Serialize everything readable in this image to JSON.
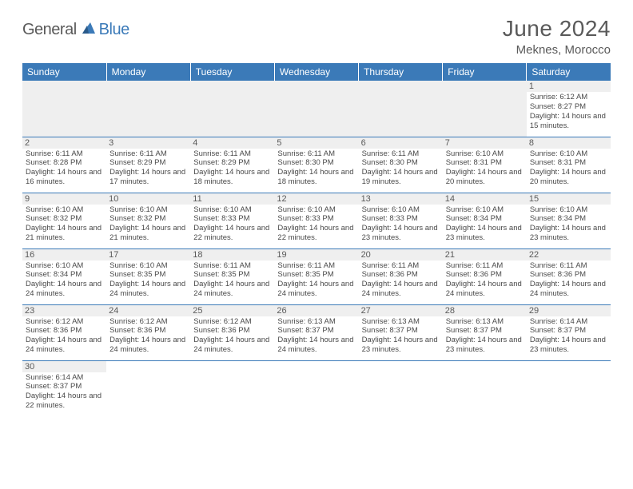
{
  "brand": {
    "part1": "General",
    "part2": "Blue"
  },
  "title": "June 2024",
  "location": "Meknes, Morocco",
  "headerColors": {
    "bg": "#3b7ab8",
    "text": "#ffffff"
  },
  "dayHeaderBg": "#efefef",
  "cellBorder": "#3b7ab8",
  "weekdays": [
    "Sunday",
    "Monday",
    "Tuesday",
    "Wednesday",
    "Thursday",
    "Friday",
    "Saturday"
  ],
  "weeks": [
    [
      null,
      null,
      null,
      null,
      null,
      null,
      {
        "n": "1",
        "sr": "6:12 AM",
        "ss": "8:27 PM",
        "dl": "14 hours and 15 minutes."
      }
    ],
    [
      {
        "n": "2",
        "sr": "6:11 AM",
        "ss": "8:28 PM",
        "dl": "14 hours and 16 minutes."
      },
      {
        "n": "3",
        "sr": "6:11 AM",
        "ss": "8:29 PM",
        "dl": "14 hours and 17 minutes."
      },
      {
        "n": "4",
        "sr": "6:11 AM",
        "ss": "8:29 PM",
        "dl": "14 hours and 18 minutes."
      },
      {
        "n": "5",
        "sr": "6:11 AM",
        "ss": "8:30 PM",
        "dl": "14 hours and 18 minutes."
      },
      {
        "n": "6",
        "sr": "6:11 AM",
        "ss": "8:30 PM",
        "dl": "14 hours and 19 minutes."
      },
      {
        "n": "7",
        "sr": "6:10 AM",
        "ss": "8:31 PM",
        "dl": "14 hours and 20 minutes."
      },
      {
        "n": "8",
        "sr": "6:10 AM",
        "ss": "8:31 PM",
        "dl": "14 hours and 20 minutes."
      }
    ],
    [
      {
        "n": "9",
        "sr": "6:10 AM",
        "ss": "8:32 PM",
        "dl": "14 hours and 21 minutes."
      },
      {
        "n": "10",
        "sr": "6:10 AM",
        "ss": "8:32 PM",
        "dl": "14 hours and 21 minutes."
      },
      {
        "n": "11",
        "sr": "6:10 AM",
        "ss": "8:33 PM",
        "dl": "14 hours and 22 minutes."
      },
      {
        "n": "12",
        "sr": "6:10 AM",
        "ss": "8:33 PM",
        "dl": "14 hours and 22 minutes."
      },
      {
        "n": "13",
        "sr": "6:10 AM",
        "ss": "8:33 PM",
        "dl": "14 hours and 23 minutes."
      },
      {
        "n": "14",
        "sr": "6:10 AM",
        "ss": "8:34 PM",
        "dl": "14 hours and 23 minutes."
      },
      {
        "n": "15",
        "sr": "6:10 AM",
        "ss": "8:34 PM",
        "dl": "14 hours and 23 minutes."
      }
    ],
    [
      {
        "n": "16",
        "sr": "6:10 AM",
        "ss": "8:34 PM",
        "dl": "14 hours and 24 minutes."
      },
      {
        "n": "17",
        "sr": "6:10 AM",
        "ss": "8:35 PM",
        "dl": "14 hours and 24 minutes."
      },
      {
        "n": "18",
        "sr": "6:11 AM",
        "ss": "8:35 PM",
        "dl": "14 hours and 24 minutes."
      },
      {
        "n": "19",
        "sr": "6:11 AM",
        "ss": "8:35 PM",
        "dl": "14 hours and 24 minutes."
      },
      {
        "n": "20",
        "sr": "6:11 AM",
        "ss": "8:36 PM",
        "dl": "14 hours and 24 minutes."
      },
      {
        "n": "21",
        "sr": "6:11 AM",
        "ss": "8:36 PM",
        "dl": "14 hours and 24 minutes."
      },
      {
        "n": "22",
        "sr": "6:11 AM",
        "ss": "8:36 PM",
        "dl": "14 hours and 24 minutes."
      }
    ],
    [
      {
        "n": "23",
        "sr": "6:12 AM",
        "ss": "8:36 PM",
        "dl": "14 hours and 24 minutes."
      },
      {
        "n": "24",
        "sr": "6:12 AM",
        "ss": "8:36 PM",
        "dl": "14 hours and 24 minutes."
      },
      {
        "n": "25",
        "sr": "6:12 AM",
        "ss": "8:36 PM",
        "dl": "14 hours and 24 minutes."
      },
      {
        "n": "26",
        "sr": "6:13 AM",
        "ss": "8:37 PM",
        "dl": "14 hours and 24 minutes."
      },
      {
        "n": "27",
        "sr": "6:13 AM",
        "ss": "8:37 PM",
        "dl": "14 hours and 23 minutes."
      },
      {
        "n": "28",
        "sr": "6:13 AM",
        "ss": "8:37 PM",
        "dl": "14 hours and 23 minutes."
      },
      {
        "n": "29",
        "sr": "6:14 AM",
        "ss": "8:37 PM",
        "dl": "14 hours and 23 minutes."
      }
    ],
    [
      {
        "n": "30",
        "sr": "6:14 AM",
        "ss": "8:37 PM",
        "dl": "14 hours and 22 minutes."
      },
      null,
      null,
      null,
      null,
      null,
      null
    ]
  ],
  "labels": {
    "sunrise": "Sunrise:",
    "sunset": "Sunset:",
    "daylight": "Daylight:"
  }
}
